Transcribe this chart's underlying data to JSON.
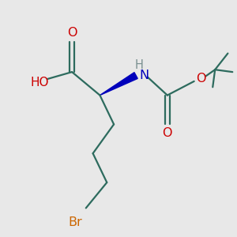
{
  "bg_color": "#e8e8e8",
  "bond_color": "#2d6b5e",
  "o_color": "#cc0000",
  "h_color": "#7a9090",
  "n_color": "#0000bb",
  "br_color": "#cc6600",
  "figsize": [
    3.0,
    3.0
  ],
  "dpi": 100,
  "xlim": [
    0,
    10
  ],
  "ylim": [
    0,
    10
  ]
}
